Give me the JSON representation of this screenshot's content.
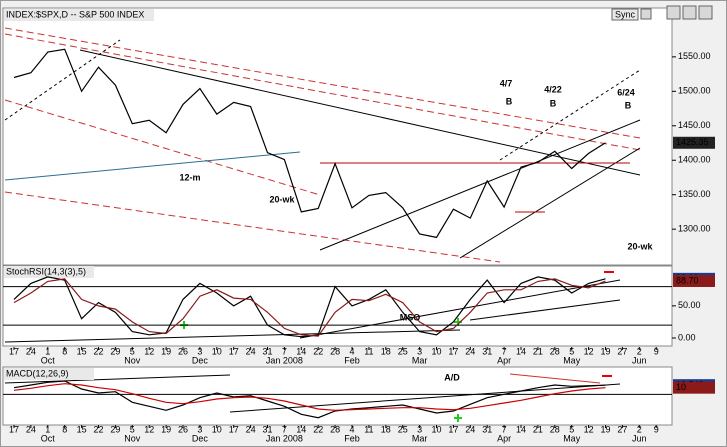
{
  "ui": {
    "sync_button": "Sync"
  },
  "chart_data": [
    {
      "type": "line",
      "title": "INDEX:$SPX,D -- S&P 500 INDEX",
      "color": "#000000",
      "values": [
        1520,
        1527,
        1557,
        1561,
        1500,
        1535,
        1509,
        1453,
        1458,
        1440,
        1481,
        1504,
        1467,
        1484,
        1478,
        1411,
        1401,
        1325,
        1330,
        1395,
        1331,
        1349,
        1353,
        1331,
        1293,
        1288,
        1329,
        1316,
        1370,
        1332,
        1390,
        1397,
        1413,
        1388,
        1410,
        1425.35,
        null,
        null,
        null
      ],
      "ylim": [
        1248,
        1618
      ],
      "yticks": [
        {
          "value": 1300,
          "label": "1300.00"
        },
        {
          "value": 1350,
          "label": "1350.00"
        },
        {
          "value": 1400,
          "label": "1400.00"
        },
        {
          "value": 1450,
          "label": "1450.00"
        },
        {
          "value": 1500,
          "label": "1500.00"
        },
        {
          "value": 1550,
          "label": "1550.00"
        }
      ],
      "annotations": [
        "12-m",
        "20-wk",
        "20-wk",
        "4/7",
        "B",
        "4/22",
        "B",
        "6/24",
        "B"
      ]
    },
    {
      "type": "line",
      "title": "StochRSI(14,3(3),5)",
      "categories": [
        "17",
        "24",
        "1",
        "8",
        "15",
        "22",
        "29",
        "5",
        "12",
        "19",
        "26",
        "3",
        "10",
        "17",
        "24",
        "31",
        "7",
        "14",
        "22",
        "28",
        "4",
        "11",
        "18",
        "25",
        "3",
        "10",
        "17",
        "24",
        "31",
        "7",
        "14",
        "21",
        "28",
        "5",
        "12",
        "19",
        "27",
        "2",
        "9"
      ],
      "month_labels": [
        null,
        null,
        "Oct",
        null,
        null,
        null,
        null,
        "Nov",
        null,
        null,
        null,
        "Dec",
        null,
        null,
        null,
        null,
        "Jan 2008",
        null,
        null,
        null,
        "Feb",
        null,
        null,
        null,
        "Mar",
        null,
        null,
        null,
        null,
        "Apr",
        null,
        null,
        null,
        "May",
        null,
        null,
        null,
        "Jun",
        null
      ],
      "series": [
        {
          "color": "#000000",
          "values": [
            60,
            85,
            95,
            90,
            30,
            55,
            40,
            10,
            5,
            8,
            60,
            85,
            70,
            50,
            65,
            20,
            5,
            2,
            5,
            80,
            50,
            60,
            75,
            40,
            10,
            5,
            25,
            60,
            90,
            55,
            85,
            95,
            90,
            70,
            85,
            92.02,
            null,
            null,
            null
          ]
        },
        {
          "color": "#8b1a1a",
          "values": [
            55,
            70,
            88,
            92,
            60,
            50,
            45,
            25,
            10,
            7,
            30,
            65,
            75,
            62,
            60,
            40,
            15,
            5,
            3,
            40,
            60,
            58,
            68,
            55,
            25,
            10,
            15,
            40,
            70,
            75,
            75,
            88,
            92,
            82,
            78,
            88.7,
            null,
            null,
            null
          ],
          "value_labels": [
            null,
            null,
            null,
            null,
            null,
            null,
            null,
            null,
            null,
            null,
            null,
            null,
            null,
            null,
            null,
            null,
            null,
            null,
            null,
            null,
            null,
            null,
            null,
            null,
            null,
            null,
            null,
            null,
            null,
            null,
            null,
            null,
            null,
            null,
            null,
            "88.70",
            null,
            null,
            null
          ]
        }
      ],
      "ylim": [
        -14,
        112
      ],
      "yticks": [
        {
          "value": 0,
          "label": "0.00"
        },
        {
          "value": 50,
          "label": "50.00"
        }
      ],
      "reference_lines": [
        20,
        80
      ],
      "annotations": [
        "MSO"
      ]
    },
    {
      "type": "line",
      "title": "MACD(12,26,9)",
      "categories": [
        "17",
        "24",
        "1",
        "8",
        "15",
        "22",
        "29",
        "5",
        "12",
        "19",
        "26",
        "3",
        "10",
        "17",
        "24",
        "31",
        "7",
        "14",
        "22",
        "28",
        "4",
        "11",
        "18",
        "25",
        "3",
        "10",
        "17",
        "24",
        "31",
        "7",
        "14",
        "21",
        "28",
        "5",
        "12",
        "19",
        "27",
        "2",
        "9"
      ],
      "month_labels": [
        null,
        null,
        "Oct",
        null,
        null,
        null,
        null,
        "Nov",
        null,
        null,
        null,
        "Dec",
        null,
        null,
        null,
        null,
        "Jan 2008",
        null,
        null,
        null,
        "Feb",
        null,
        null,
        null,
        "Mar",
        null,
        null,
        null,
        null,
        "Apr",
        null,
        null,
        null,
        "May",
        null,
        null,
        null,
        "Jun",
        null
      ],
      "series": [
        {
          "color": "#000000",
          "values": [
            10,
            14,
            18,
            20,
            8,
            2,
            4,
            -12,
            -18,
            -24,
            -16,
            -5,
            2,
            -4,
            -2,
            -10,
            -18,
            -30,
            -35,
            -25,
            -22,
            -20,
            -18,
            -16,
            -22,
            -28,
            -25,
            -15,
            -5,
            0,
            5,
            10,
            14,
            12,
            13,
            13.749,
            null,
            null,
            null
          ]
        },
        {
          "color": "#cc0000",
          "values": [
            6,
            9,
            13,
            16,
            14,
            10,
            7,
            1,
            -6,
            -12,
            -14,
            -11,
            -7,
            -5,
            -4,
            -6,
            -10,
            -16,
            -22,
            -24,
            -23,
            -22,
            -21,
            -20,
            -20,
            -22,
            -23,
            -21,
            -17,
            -13,
            -9,
            -4,
            1,
            5,
            8,
            10,
            null,
            null,
            null
          ]
        }
      ],
      "ylim": [
        -46,
        41
      ],
      "reference_lines": [
        0
      ],
      "annotations": [
        "A/D"
      ]
    }
  ]
}
